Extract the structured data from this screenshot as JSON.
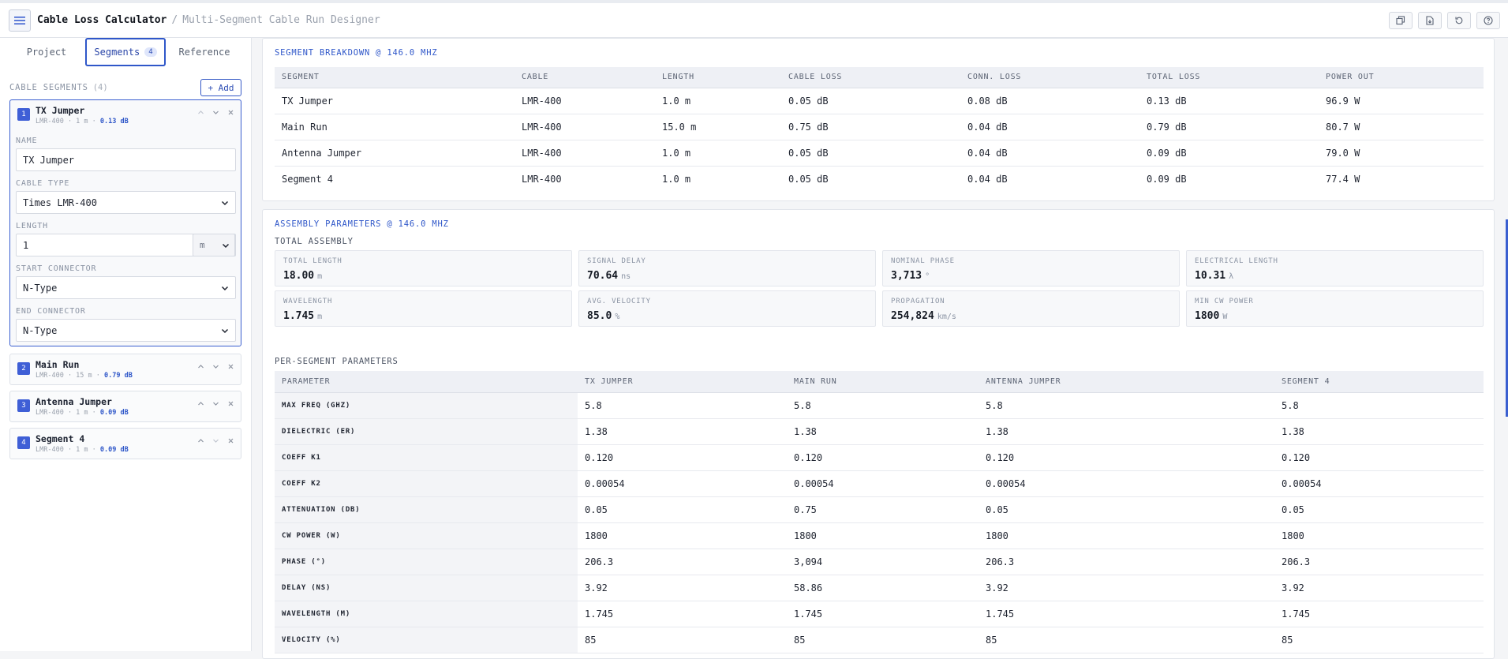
{
  "header": {
    "title": "Cable Loss Calculator",
    "separator": "/",
    "subtitle": "Multi-Segment Cable Run Designer"
  },
  "tabs": [
    {
      "label": "Project"
    },
    {
      "label": "Segments",
      "count": "4"
    },
    {
      "label": "Reference"
    }
  ],
  "sidebar": {
    "section_label": "CABLE SEGMENTS",
    "section_count": "(4)",
    "add_label": "+ Add",
    "segments": [
      {
        "index": "1",
        "name": "TX Jumper",
        "meta": "LMR-400 · 1 m · ",
        "loss": "0.13 dB"
      },
      {
        "index": "2",
        "name": "Main Run",
        "meta": "LMR-400 · 15 m · ",
        "loss": "0.79 dB"
      },
      {
        "index": "3",
        "name": "Antenna Jumper",
        "meta": "LMR-400 · 1 m · ",
        "loss": "0.09 dB"
      },
      {
        "index": "4",
        "name": "Segment 4",
        "meta": "LMR-400 · 1 m · ",
        "loss": "0.09 dB"
      }
    ],
    "editor": {
      "name_label": "NAME",
      "name_value": "TX Jumper",
      "cable_label": "CABLE TYPE",
      "cable_value": "Times LMR-400",
      "length_label": "LENGTH",
      "length_value": "1",
      "length_unit": "m",
      "start_label": "START CONNECTOR",
      "start_value": "N-Type",
      "end_label": "END CONNECTOR",
      "end_value": "N-Type"
    }
  },
  "breakdown": {
    "title": "SEGMENT BREAKDOWN @ 146.0 MHZ",
    "columns": [
      "SEGMENT",
      "CABLE",
      "LENGTH",
      "CABLE LOSS",
      "CONN. LOSS",
      "TOTAL LOSS",
      "POWER OUT"
    ],
    "rows": [
      [
        "TX Jumper",
        "LMR-400",
        "1.0 m",
        "0.05 dB",
        "0.08 dB",
        "0.13 dB",
        "96.9 W"
      ],
      [
        "Main Run",
        "LMR-400",
        "15.0 m",
        "0.75 dB",
        "0.04 dB",
        "0.79 dB",
        "80.7 W"
      ],
      [
        "Antenna Jumper",
        "LMR-400",
        "1.0 m",
        "0.05 dB",
        "0.04 dB",
        "0.09 dB",
        "79.0 W"
      ],
      [
        "Segment 4",
        "LMR-400",
        "1.0 m",
        "0.05 dB",
        "0.04 dB",
        "0.09 dB",
        "77.4 W"
      ]
    ]
  },
  "assembly": {
    "title": "ASSEMBLY PARAMETERS @ 146.0 MHZ",
    "total_label": "TOTAL ASSEMBLY",
    "stats": [
      {
        "label": "TOTAL LENGTH",
        "value": "18.00",
        "unit": "m"
      },
      {
        "label": "SIGNAL DELAY",
        "value": "70.64",
        "unit": "ns"
      },
      {
        "label": "NOMINAL PHASE",
        "value": "3,713",
        "unit": "°"
      },
      {
        "label": "ELECTRICAL LENGTH",
        "value": "10.31",
        "unit": "λ"
      },
      {
        "label": "WAVELENGTH",
        "value": "1.745",
        "unit": "m"
      },
      {
        "label": "AVG. VELOCITY",
        "value": "85.0",
        "unit": "%"
      },
      {
        "label": "PROPAGATION",
        "value": "254,824",
        "unit": "km/s"
      },
      {
        "label": "MIN CW POWER",
        "value": "1800",
        "unit": "W"
      }
    ],
    "per_segment_label": "PER-SEGMENT PARAMETERS",
    "columns": [
      "PARAMETER",
      "TX JUMPER",
      "MAIN RUN",
      "ANTENNA JUMPER",
      "SEGMENT 4"
    ],
    "rows": [
      [
        "MAX FREQ (GHZ)",
        "5.8",
        "5.8",
        "5.8",
        "5.8"
      ],
      [
        "DIELECTRIC (ER)",
        "1.38",
        "1.38",
        "1.38",
        "1.38"
      ],
      [
        "COEFF K1",
        "0.120",
        "0.120",
        "0.120",
        "0.120"
      ],
      [
        "COEFF K2",
        "0.00054",
        "0.00054",
        "0.00054",
        "0.00054"
      ],
      [
        "ATTENUATION (DB)",
        "0.05",
        "0.75",
        "0.05",
        "0.05"
      ],
      [
        "CW POWER (W)",
        "1800",
        "1800",
        "1800",
        "1800"
      ],
      [
        "PHASE (°)",
        "206.3",
        "3,094",
        "206.3",
        "206.3"
      ],
      [
        "DELAY (NS)",
        "3.92",
        "58.86",
        "3.92",
        "3.92"
      ],
      [
        "WAVELENGTH (M)",
        "1.745",
        "1.745",
        "1.745",
        "1.745"
      ],
      [
        "VELOCITY (%)",
        "85",
        "85",
        "85",
        "85"
      ]
    ]
  },
  "toolbar_icons": [
    "copy-icon",
    "export-icon",
    "reset-icon",
    "help-icon"
  ],
  "colors": {
    "accent": "#2f57c9",
    "badge": "#3f5fd6"
  }
}
